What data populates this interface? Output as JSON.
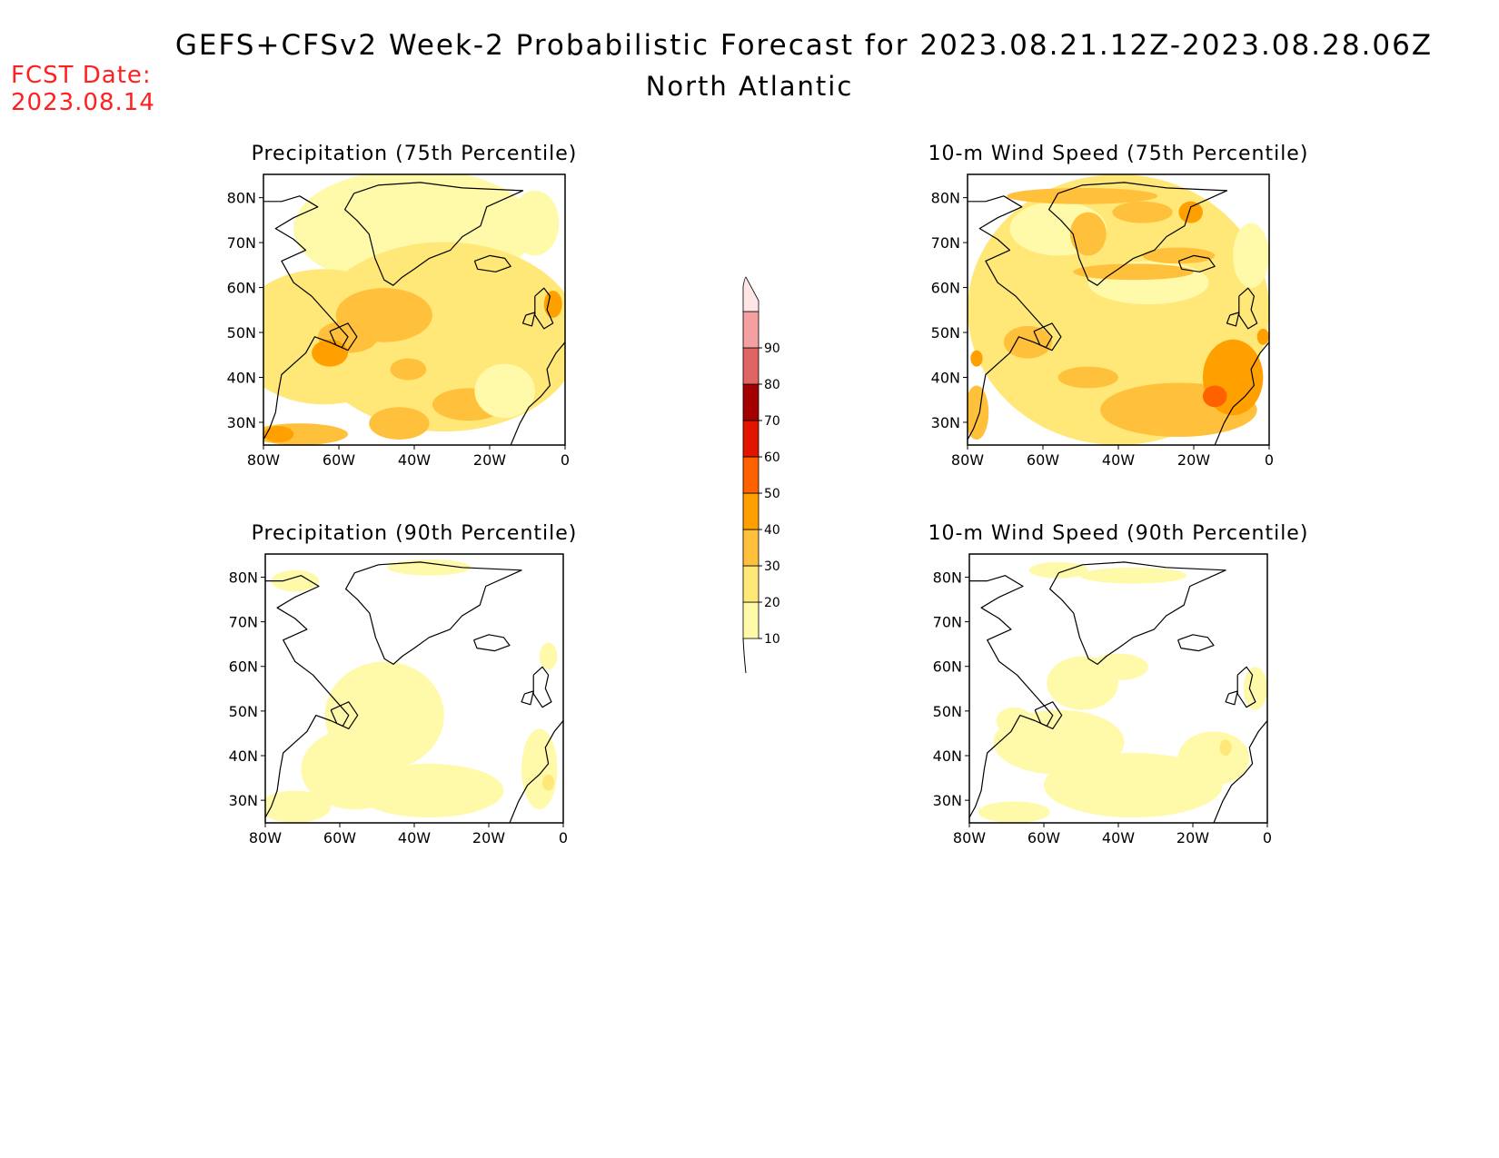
{
  "header": {
    "title": "GEFS+CFSv2 Week-2 Probabilistic Forecast for 2023.08.21.12Z-2023.08.28.06Z",
    "region": "North Atlantic",
    "fcst_label": "FCST Date:",
    "fcst_value": "2023.08.14"
  },
  "panels": [
    {
      "title": "Precipitation (75th Percentile)"
    },
    {
      "title": "10-m Wind Speed (75th Percentile)"
    },
    {
      "title": "Precipitation (90th Percentile)"
    },
    {
      "title": "10-m Wind Speed (90th Percentile)"
    }
  ],
  "lat_ticks": [
    "80N",
    "70N",
    "60N",
    "50N",
    "40N",
    "30N"
  ],
  "lon_ticks": [
    "80W",
    "60W",
    "40W",
    "20W",
    "0"
  ],
  "colorbar": {
    "levels": [
      "10",
      "20",
      "30",
      "40",
      "50",
      "60",
      "70",
      "80",
      "90"
    ],
    "colors": [
      "#fffaaa",
      "#ffe878",
      "#ffc03c",
      "#ffa000",
      "#ff6000",
      "#e11400",
      "#a50000",
      "#e06464",
      "#f5a0a0",
      "#ffe6e6"
    ]
  }
}
